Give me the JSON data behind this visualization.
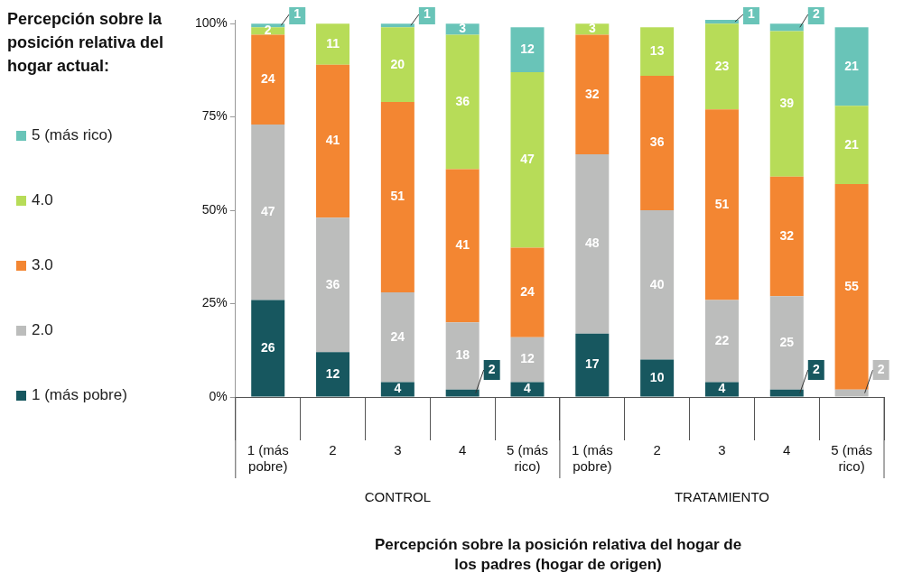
{
  "chart_data": {
    "type": "bar",
    "stacked": true,
    "xlabel": "Percepción sobre la posición relativa del hogar de los padres (hogar de origen)",
    "legend_title": "Percepción sobre la posición relativa del hogar actual:",
    "legend": "left",
    "data_labels": true,
    "categories": [
      "1 (más pobre)",
      "2",
      "3",
      "4",
      "5 (más rico)",
      "1 (más pobre)",
      "2",
      "3",
      "4",
      "5 (más rico)"
    ],
    "annotations": [
      "CONTROL",
      "TRATAMIENTO"
    ],
    "ylim": [
      0,
      101
    ],
    "yticks": [
      {
        "value": 0,
        "label": "0%"
      },
      {
        "value": 25,
        "label": "25%"
      },
      {
        "value": 50,
        "label": "50%"
      },
      {
        "value": 75,
        "label": "75%"
      },
      {
        "value": 100,
        "label": "100%"
      }
    ],
    "series": [
      {
        "name": "1 (más pobre)",
        "color": "#17575f",
        "values": [
          26,
          12,
          4,
          2,
          4,
          17,
          10,
          4,
          2,
          null
        ]
      },
      {
        "name": "2.0",
        "color": "#bcbdbc",
        "values": [
          47,
          36,
          24,
          18,
          12,
          48,
          40,
          22,
          25,
          2
        ]
      },
      {
        "name": "3.0",
        "color": "#f38632",
        "values": [
          24,
          41,
          51,
          41,
          24,
          32,
          36,
          51,
          32,
          55
        ]
      },
      {
        "name": "4.0",
        "color": "#b7dc58",
        "values": [
          2,
          11,
          20,
          36,
          47,
          3,
          13,
          23,
          39,
          21
        ]
      },
      {
        "name": "5 (más rico)",
        "color": "#69c4b8",
        "values": [
          1,
          null,
          1,
          3,
          12,
          null,
          null,
          1,
          2,
          21
        ]
      }
    ]
  }
}
